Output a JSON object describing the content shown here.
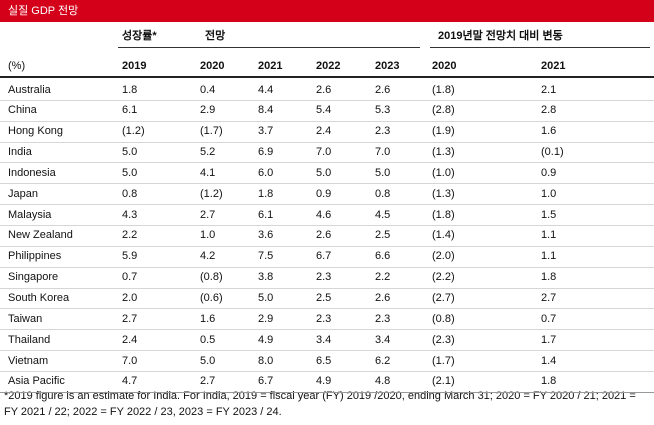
{
  "header": {
    "title": "실질 GDP 전망"
  },
  "table": {
    "group_headers": [
      "성장률*",
      "전망",
      "2019년말 전망치 대비 변동"
    ],
    "columns": [
      "(%)",
      "2019",
      "2020",
      "2021",
      "2022",
      "2023",
      "2020",
      "2021"
    ],
    "rows": [
      [
        "Australia",
        "1.8",
        "0.4",
        "4.4",
        "2.6",
        "2.6",
        "(1.8)",
        "2.1"
      ],
      [
        "China",
        "6.1",
        "2.9",
        "8.4",
        "5.4",
        "5.3",
        "(2.8)",
        "2.8"
      ],
      [
        "Hong Kong",
        "(1.2)",
        "(1.7)",
        "3.7",
        "2.4",
        "2.3",
        "(1.9)",
        "1.6"
      ],
      [
        "India",
        "5.0",
        "5.2",
        "6.9",
        "7.0",
        "7.0",
        "(1.3)",
        "(0.1)"
      ],
      [
        "Indonesia",
        "5.0",
        "4.1",
        "6.0",
        "5.0",
        "5.0",
        "(1.0)",
        "0.9"
      ],
      [
        "Japan",
        "0.8",
        "(1.2)",
        "1.8",
        "0.9",
        "0.8",
        "(1.3)",
        "1.0"
      ],
      [
        "Malaysia",
        "4.3",
        "2.7",
        "6.1",
        "4.6",
        "4.5",
        "(1.8)",
        "1.5"
      ],
      [
        "New Zealand",
        "2.2",
        "1.0",
        "3.6",
        "2.6",
        "2.5",
        "(1.4)",
        "1.1"
      ],
      [
        "Philippines",
        "5.9",
        "4.2",
        "7.5",
        "6.7",
        "6.6",
        "(2.0)",
        "1.1"
      ],
      [
        "Singapore",
        "0.7",
        "(0.8)",
        "3.8",
        "2.3",
        "2.2",
        "(2.2)",
        "1.8"
      ],
      [
        "South Korea",
        "2.0",
        "(0.6)",
        "5.0",
        "2.5",
        "2.6",
        "(2.7)",
        "2.7"
      ],
      [
        "Taiwan",
        "2.7",
        "1.6",
        "2.9",
        "2.3",
        "2.3",
        "(0.8)",
        "0.7"
      ],
      [
        "Thailand",
        "2.4",
        "0.5",
        "4.9",
        "3.4",
        "3.4",
        "(2.3)",
        "1.7"
      ],
      [
        "Vietnam",
        "7.0",
        "5.0",
        "8.0",
        "6.5",
        "6.2",
        "(1.7)",
        "1.4"
      ],
      [
        "Asia Pacific",
        "4.7",
        "2.7",
        "6.7",
        "4.9",
        "4.8",
        "(2.1)",
        "1.8"
      ]
    ]
  },
  "footnote": "*2019 figure is an estimate for India. For India, 2019 = fiscal year (FY) 2019 /2020, ending March 31; 2020 = FY 2020 / 21; 2021 = FY 2021 / 22; 2022 = FY 2022 / 23, 2023 = FY 2023 / 24."
}
